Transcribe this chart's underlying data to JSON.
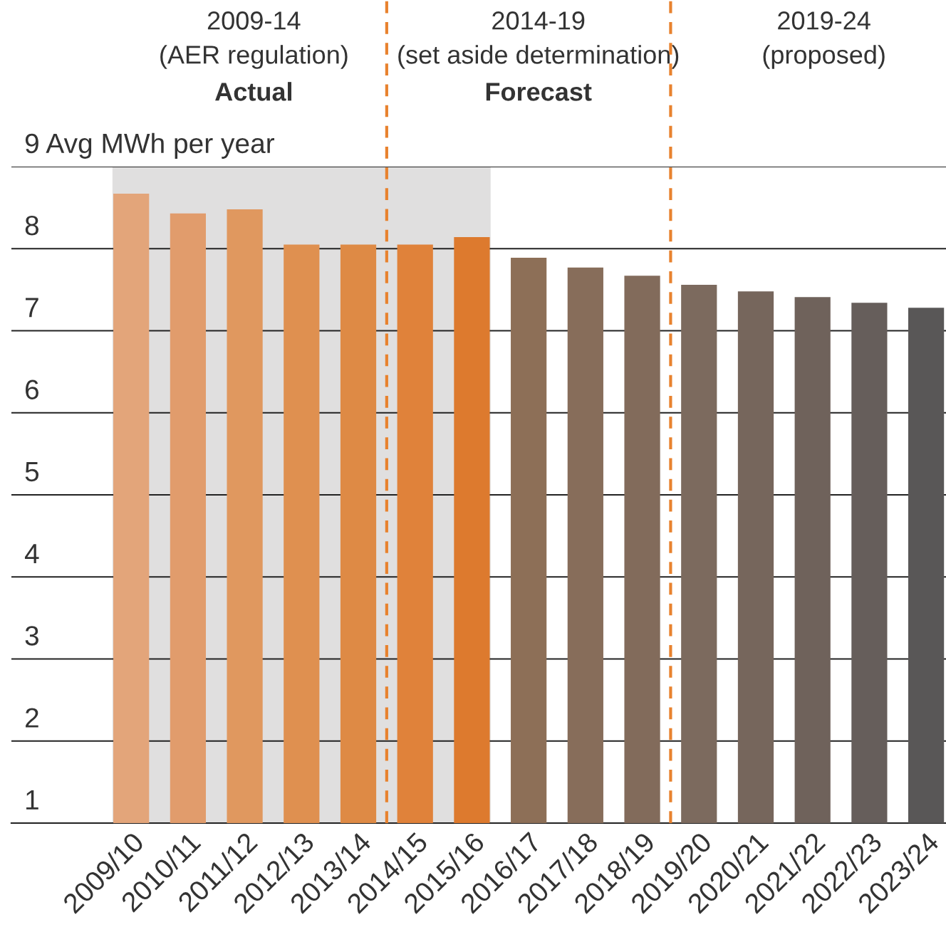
{
  "chart_data": {
    "type": "bar",
    "categories": [
      "2009/10",
      "2010/11",
      "2011/12",
      "2012/13",
      "2013/14",
      "2014/15",
      "2015/16",
      "2016/17",
      "2017/18",
      "2018/19",
      "2019/20",
      "2020/21",
      "2021/22",
      "2022/23",
      "2023/24"
    ],
    "values": [
      8.67,
      8.43,
      8.48,
      8.05,
      8.05,
      8.05,
      8.14,
      7.89,
      7.77,
      7.67,
      7.56,
      7.48,
      7.41,
      7.34,
      7.28
    ],
    "colors": [
      "#e3a57a",
      "#e19c6c",
      "#e0985f",
      "#df9050",
      "#de8a45",
      "#e0823a",
      "#dd7a2e",
      "#8d6f57",
      "#876d5a",
      "#826b5b",
      "#7c6a5e",
      "#76665c",
      "#6f625b",
      "#665e5b",
      "#595757"
    ],
    "ylim": [
      1,
      9
    ],
    "yticks": [
      1,
      2,
      3,
      4,
      5,
      6,
      7,
      8,
      {
        "value": 9,
        "label": "9 Avg MWh per year"
      }
    ],
    "grid": "y",
    "bands": [
      {
        "axis": "x",
        "from": "2009/10",
        "to": "2015/16",
        "color": "#e0dfdf"
      }
    ],
    "annotations": [
      "2009-14",
      "(AER regulation)",
      "Actual",
      "2014-19",
      "(set aside determination)",
      "Forecast",
      "2019-24",
      "(proposed)"
    ]
  }
}
